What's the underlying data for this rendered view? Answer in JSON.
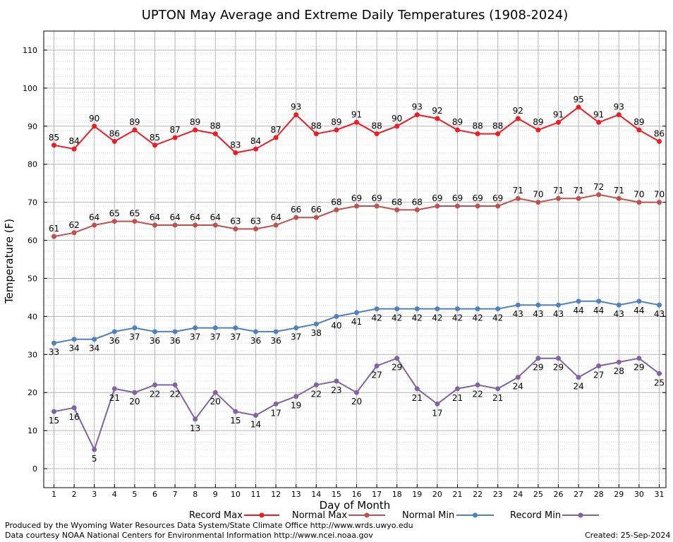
{
  "chart_data": {
    "type": "line",
    "title": "UPTON May Average and Extreme Daily Temperatures (1908-2024)",
    "xlabel": "Day of Month",
    "ylabel": "Temperature (F)",
    "ylim": [
      -5,
      115
    ],
    "yticks": [
      0,
      10,
      20,
      30,
      40,
      50,
      60,
      70,
      80,
      90,
      100,
      110
    ],
    "x": [
      1,
      2,
      3,
      4,
      5,
      6,
      7,
      8,
      9,
      10,
      11,
      12,
      13,
      14,
      15,
      16,
      17,
      18,
      19,
      20,
      21,
      22,
      23,
      24,
      25,
      26,
      27,
      28,
      29,
      30,
      31
    ],
    "grid": true,
    "legend_position": "bottom",
    "series": [
      {
        "name": "Record Max",
        "color": "#ee1c24",
        "values": [
          85,
          84,
          90,
          86,
          89,
          85,
          87,
          89,
          88,
          83,
          84,
          87,
          93,
          88,
          89,
          91,
          88,
          90,
          93,
          92,
          89,
          88,
          88,
          92,
          89,
          91,
          95,
          91,
          93,
          89,
          86
        ]
      },
      {
        "name": "Normal Max",
        "color": "#c0504d",
        "values": [
          61,
          62,
          64,
          65,
          65,
          64,
          64,
          64,
          64,
          63,
          63,
          64,
          66,
          66,
          68,
          69,
          69,
          68,
          68,
          69,
          69,
          69,
          69,
          71,
          70,
          71,
          71,
          72,
          71,
          70,
          70
        ]
      },
      {
        "name": "Normal Min",
        "color": "#4f81bd",
        "values": [
          33,
          34,
          34,
          36,
          37,
          36,
          36,
          37,
          37,
          37,
          36,
          36,
          37,
          38,
          40,
          41,
          42,
          42,
          42,
          42,
          42,
          42,
          42,
          43,
          43,
          43,
          44,
          44,
          43,
          44,
          43
        ]
      },
      {
        "name": "Record Min",
        "color": "#8064a2",
        "values": [
          15,
          16,
          5,
          21,
          20,
          22,
          22,
          13,
          20,
          15,
          14,
          17,
          19,
          22,
          23,
          20,
          27,
          29,
          21,
          17,
          21,
          22,
          21,
          24,
          29,
          29,
          24,
          27,
          28,
          29,
          25
        ]
      }
    ]
  },
  "footer": {
    "produced_by": "Produced by the Wyoming Water Resources Data System/State Climate Office http://www.wrds.uwyo.edu",
    "courtesy": "Data courtesy NOAA National Centers for Environmental Information http://www.ncei.noaa.gov",
    "created": "Created:  25-Sep-2024"
  }
}
